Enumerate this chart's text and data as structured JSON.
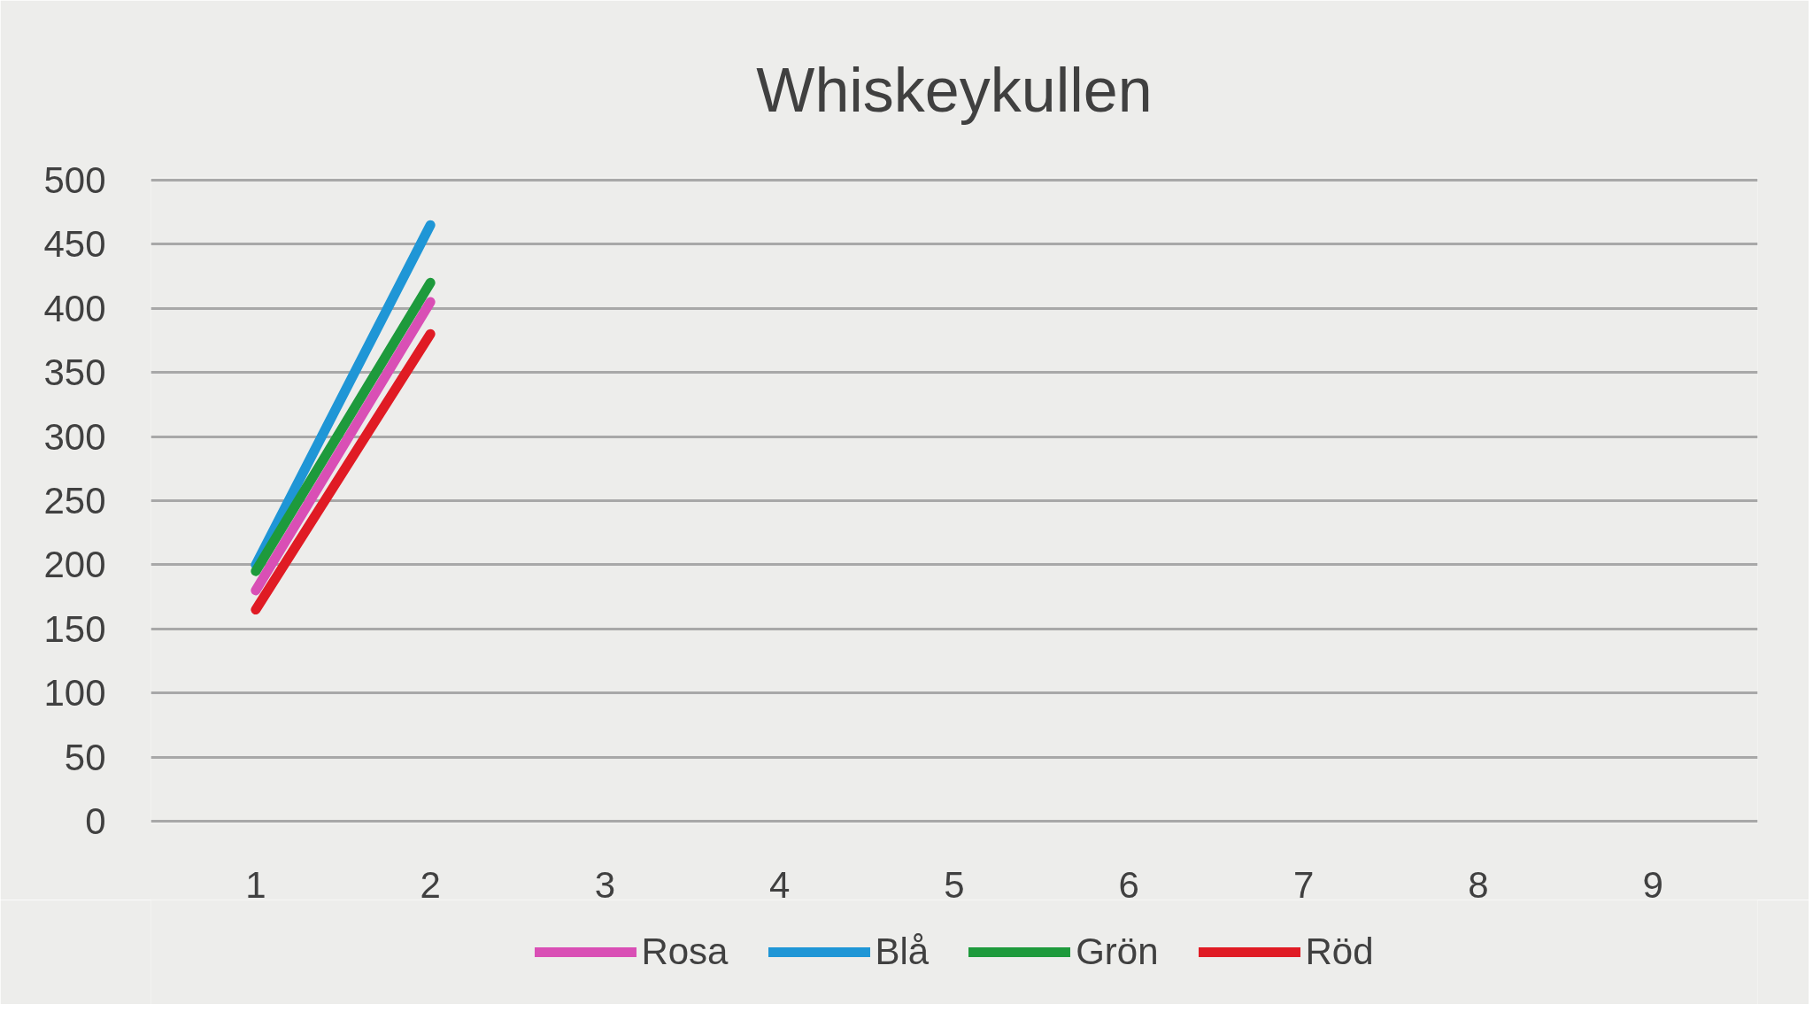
{
  "chart_data": {
    "type": "line",
    "title": "Whiskeykullen",
    "categories": [
      "1",
      "2",
      "3",
      "4",
      "5",
      "6",
      "7",
      "8",
      "9"
    ],
    "series": [
      {
        "name": "Rosa",
        "color": "#d94fb5",
        "values": [
          180,
          405,
          null,
          null,
          null,
          null,
          null,
          null,
          null
        ]
      },
      {
        "name": "Blå",
        "color": "#1f96d6",
        "values": [
          200,
          465,
          null,
          null,
          null,
          null,
          null,
          null,
          null
        ]
      },
      {
        "name": "Grön",
        "color": "#1e9a3c",
        "values": [
          195,
          420,
          null,
          null,
          null,
          null,
          null,
          null,
          null
        ]
      },
      {
        "name": "Röd",
        "color": "#e01b24",
        "values": [
          165,
          380,
          null,
          null,
          null,
          null,
          null,
          null,
          null
        ]
      }
    ],
    "ylim": [
      0,
      500
    ],
    "yticks": [
      0,
      50,
      100,
      150,
      200,
      250,
      300,
      350,
      400,
      450,
      500
    ],
    "grid": "y",
    "legend": "bottom",
    "marker": "none",
    "line_style": "solid"
  }
}
